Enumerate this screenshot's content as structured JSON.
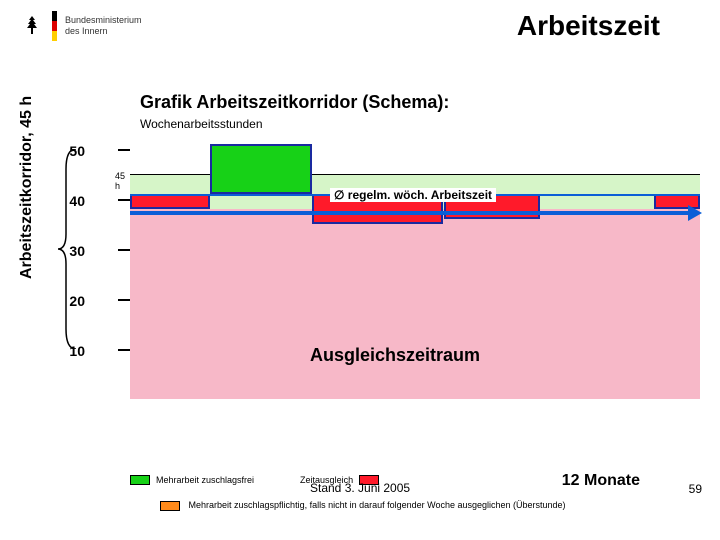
{
  "header": {
    "ministry_line1": "Bundesministerium",
    "ministry_line2": "des Innern",
    "main_title": "Arbeitszeit",
    "flag_colors": [
      "#000000",
      "#dd0000",
      "#ffce00"
    ]
  },
  "chart": {
    "title": "Grafik Arbeitszeitkorridor (Schema):",
    "subtitle": "Wochenarbeitsstunden",
    "y_axis_outer_label": "Arbeitszeitkorridor, 45 h",
    "y_ticks": [
      50,
      40,
      30,
      20,
      10
    ],
    "y_max": 52,
    "y_min": 0,
    "small_45_label": "45 h",
    "corridor": {
      "top_value": 45,
      "bottom_value": 38,
      "fill": "#d6f5c8"
    },
    "lower_fill": {
      "top_value": 38,
      "bottom_value": 0,
      "fill": "#f7b8c8"
    },
    "regelm_line_value": 41,
    "regelm_label": "∅ regelm. wöch. Arbeitszeit",
    "regelm_line_color": "#0b5ed7",
    "bars": [
      {
        "x0": 0.0,
        "x1": 0.14,
        "top": 41,
        "bottom": 38,
        "fill": "#ff1a2a",
        "border": "#1a2aa0"
      },
      {
        "x0": 0.14,
        "x1": 0.32,
        "top": 51,
        "bottom": 41,
        "fill": "#17d117",
        "border": "#1a2aa0"
      },
      {
        "x0": 0.32,
        "x1": 0.55,
        "top": 41,
        "bottom": 35,
        "fill": "#ff1a2a",
        "border": "#1a2aa0"
      },
      {
        "x0": 0.55,
        "x1": 0.72,
        "top": 41,
        "bottom": 36,
        "fill": "#ff1a2a",
        "border": "#1a2aa0"
      },
      {
        "x0": 0.92,
        "x1": 1.0,
        "top": 41,
        "bottom": 38,
        "fill": "#ff1a2a",
        "border": "#1a2aa0"
      }
    ],
    "arrow_color": "#0b5ed7",
    "ausgleich_label": "Ausgleichszeitraum"
  },
  "legend": {
    "item1": {
      "label": "Mehrarbeit zuschlagsfrei",
      "fill": "#17d117"
    },
    "item2": {
      "label": "Zeitausgleich",
      "fill": "#ff1a2a"
    },
    "note_full": "Mehrarbeit zuschlagspflichtig, falls nicht in darauf folgender Woche ausgeglichen (Überstunde)",
    "note_box_fill": "#ff8a1a"
  },
  "footer": {
    "stand": "Stand 3. Juni 2005",
    "months": "12 Monate",
    "page": "59"
  },
  "colors": {
    "text": "#000000"
  }
}
